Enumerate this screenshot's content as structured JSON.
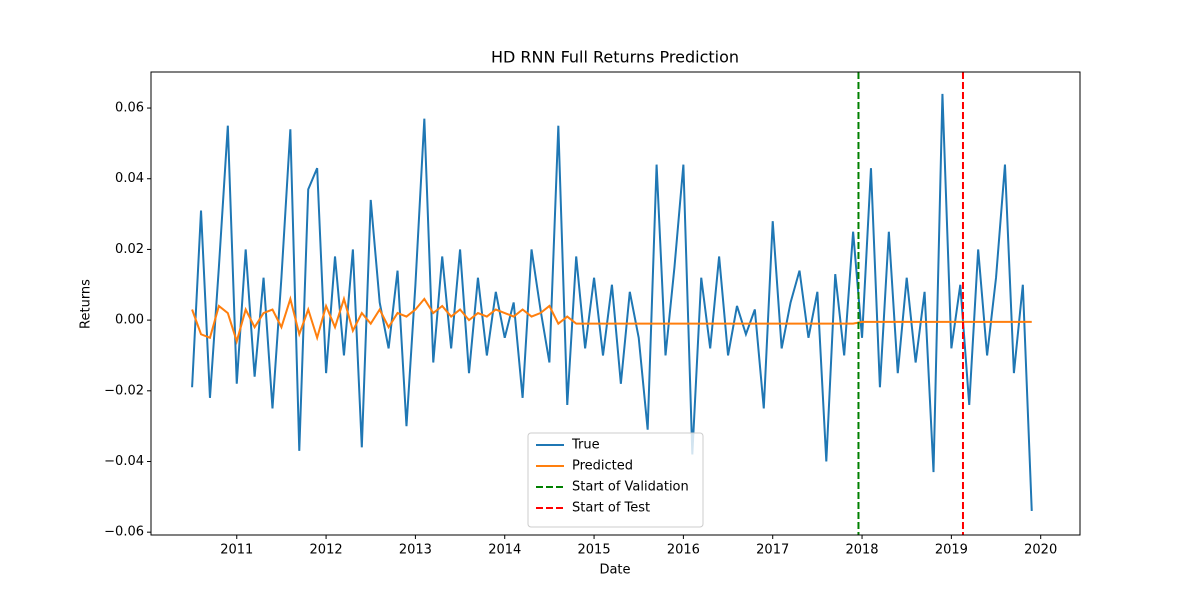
{
  "chart_data": {
    "type": "line",
    "title": "HD RNN Full Returns Prediction",
    "x_label": "Date",
    "y_label": "Returns",
    "x": [
      2010.5,
      2010.6,
      2010.7,
      2010.8,
      2010.9,
      2011.0,
      2011.1,
      2011.2,
      2011.3,
      2011.4,
      2011.5,
      2011.6,
      2011.7,
      2011.8,
      2011.9,
      2012.0,
      2012.1,
      2012.2,
      2012.3,
      2012.4,
      2012.5,
      2012.6,
      2012.7,
      2012.8,
      2012.9,
      2013.0,
      2013.1,
      2013.2,
      2013.3,
      2013.4,
      2013.5,
      2013.6,
      2013.7,
      2013.8,
      2013.9,
      2014.0,
      2014.1,
      2014.2,
      2014.3,
      2014.4,
      2014.5,
      2014.6,
      2014.7,
      2014.8,
      2014.9,
      2015.0,
      2015.1,
      2015.2,
      2015.3,
      2015.4,
      2015.5,
      2015.6,
      2015.7,
      2015.8,
      2015.9,
      2016.0,
      2016.1,
      2016.2,
      2016.3,
      2016.4,
      2016.5,
      2016.6,
      2016.7,
      2016.8,
      2016.9,
      2017.0,
      2017.1,
      2017.2,
      2017.3,
      2017.4,
      2017.5,
      2017.6,
      2017.7,
      2017.8,
      2017.9,
      2018.0,
      2018.1,
      2018.2,
      2018.3,
      2018.4,
      2018.5,
      2018.6,
      2018.7,
      2018.8,
      2018.9,
      2019.0,
      2019.1,
      2019.2,
      2019.3,
      2019.4,
      2019.5,
      2019.6,
      2019.7,
      2019.8,
      2019.9
    ],
    "series": [
      {
        "name": "True",
        "color": "#1f77b4",
        "values": [
          -0.019,
          0.031,
          -0.022,
          0.015,
          0.055,
          -0.018,
          0.02,
          -0.016,
          0.012,
          -0.025,
          0.012,
          0.054,
          -0.037,
          0.037,
          0.043,
          -0.015,
          0.018,
          -0.01,
          0.02,
          -0.036,
          0.034,
          0.005,
          -0.008,
          0.014,
          -0.03,
          0.01,
          0.057,
          -0.012,
          0.018,
          -0.008,
          0.02,
          -0.015,
          0.012,
          -0.01,
          0.008,
          -0.005,
          0.005,
          -0.022,
          0.02,
          0.003,
          -0.012,
          0.055,
          -0.024,
          0.018,
          -0.008,
          0.012,
          -0.01,
          0.01,
          -0.018,
          0.008,
          -0.005,
          -0.031,
          0.044,
          -0.01,
          0.015,
          0.044,
          -0.038,
          0.012,
          -0.008,
          0.018,
          -0.01,
          0.004,
          -0.004,
          0.003,
          -0.025,
          0.028,
          -0.008,
          0.005,
          0.014,
          -0.005,
          0.008,
          -0.04,
          0.013,
          -0.01,
          0.025,
          -0.005,
          0.043,
          -0.019,
          0.025,
          -0.015,
          0.012,
          -0.012,
          0.008,
          -0.043,
          0.064,
          -0.008,
          0.01,
          -0.024,
          0.02,
          -0.01,
          0.012,
          0.044,
          -0.015,
          0.01,
          -0.054
        ]
      },
      {
        "name": "Predicted",
        "color": "#ff7f0e",
        "values": [
          0.003,
          -0.004,
          -0.005,
          0.004,
          0.002,
          -0.006,
          0.003,
          -0.002,
          0.002,
          0.003,
          -0.002,
          0.006,
          -0.004,
          0.003,
          -0.005,
          0.004,
          -0.002,
          0.006,
          -0.003,
          0.002,
          -0.001,
          0.003,
          -0.002,
          0.002,
          0.001,
          0.003,
          0.006,
          0.002,
          0.004,
          0.001,
          0.003,
          0.0,
          0.002,
          0.001,
          0.003,
          0.002,
          0.001,
          0.003,
          0.001,
          0.002,
          0.004,
          -0.001,
          0.001,
          -0.001,
          -0.001,
          -0.001,
          -0.001,
          -0.001,
          -0.001,
          -0.001,
          -0.001,
          -0.001,
          -0.001,
          -0.001,
          -0.001,
          -0.001,
          -0.001,
          -0.001,
          -0.001,
          -0.001,
          -0.001,
          -0.001,
          -0.001,
          -0.001,
          -0.001,
          -0.001,
          -0.001,
          -0.001,
          -0.001,
          -0.001,
          -0.001,
          -0.001,
          -0.001,
          -0.001,
          -0.001,
          -0.0005,
          -0.0005,
          -0.0005,
          -0.0005,
          -0.0005,
          -0.0005,
          -0.0005,
          -0.0005,
          -0.0005,
          -0.0005,
          -0.0005,
          -0.0005,
          -0.0005,
          -0.0005,
          -0.0005,
          -0.0005,
          -0.0005,
          -0.0005,
          -0.0005,
          -0.0005
        ]
      }
    ],
    "vlines": [
      {
        "name": "Start of Validation",
        "x": 2017.96,
        "color": "green"
      },
      {
        "name": "Start of Test",
        "x": 2019.13,
        "color": "red"
      }
    ],
    "xlim": [
      2010.04,
      2020.44
    ],
    "xticks": [
      2011,
      2012,
      2013,
      2014,
      2015,
      2016,
      2017,
      2018,
      2019,
      2020
    ],
    "ylim": [
      -0.0608,
      0.0702
    ],
    "yticks": [
      {
        "value": -0.06,
        "label": "−0.06"
      },
      {
        "value": -0.04,
        "label": "−0.04"
      },
      {
        "value": -0.02,
        "label": "−0.02"
      },
      {
        "value": 0,
        "label": "0.00"
      },
      0.02,
      0.04,
      0.06
    ],
    "legend": "lower center",
    "grid": false
  }
}
